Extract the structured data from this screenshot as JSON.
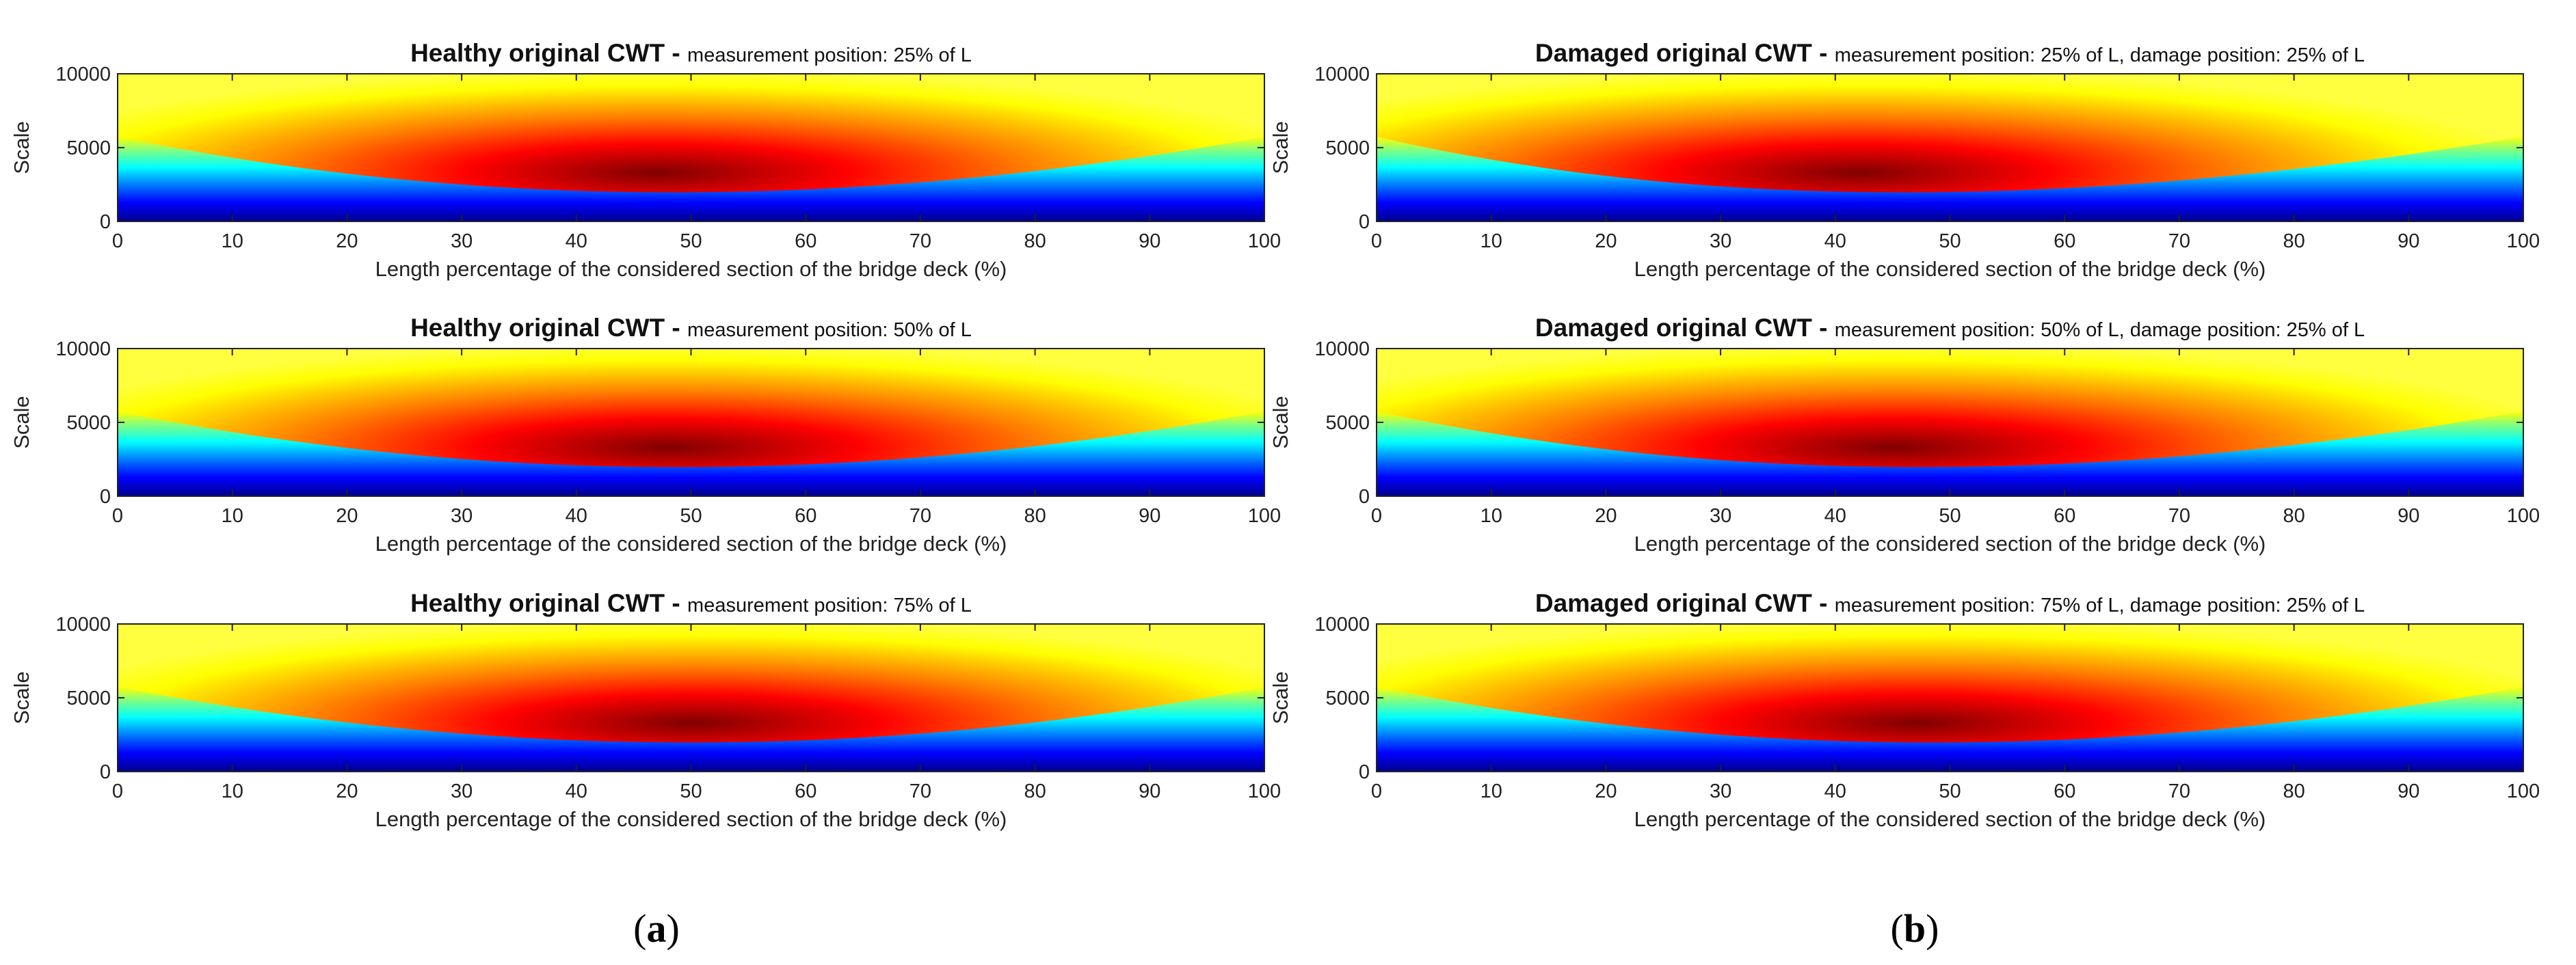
{
  "panel_labels": [
    {
      "open": "(",
      "letter": "a",
      "close": ")"
    },
    {
      "open": "(",
      "letter": "b",
      "close": ")"
    }
  ],
  "colormap": [
    "#00008f",
    "#0000ff",
    "#0080ff",
    "#00ffff",
    "#80ff80",
    "#ffff00",
    "#ff8000",
    "#ff0000",
    "#800000"
  ],
  "chart_data": [
    {
      "type": "heatmap",
      "id": "healthy-25",
      "title_bold": "Healthy original CWT - ",
      "title_rest": "measurement position: 25% of L",
      "xlabel": "Length percentage of the considered section of the bridge deck (%)",
      "ylabel": "Scale",
      "xlim": [
        0,
        100
      ],
      "ylim": [
        0,
        10000
      ],
      "xticks": [
        "0",
        "10",
        "20",
        "30",
        "40",
        "50",
        "60",
        "70",
        "80",
        "90",
        "100"
      ],
      "yticks": [
        "0",
        "5000",
        "10000"
      ],
      "peak": {
        "x": 47,
        "scale": 3300
      }
    },
    {
      "type": "heatmap",
      "id": "healthy-50",
      "title_bold": "Healthy original CWT - ",
      "title_rest": "measurement position: 50% of L",
      "xlabel": "Length percentage of the considered section of the bridge deck (%)",
      "ylabel": "Scale",
      "xlim": [
        0,
        100
      ],
      "ylim": [
        0,
        10000
      ],
      "xticks": [
        "0",
        "10",
        "20",
        "30",
        "40",
        "50",
        "60",
        "70",
        "80",
        "90",
        "100"
      ],
      "yticks": [
        "0",
        "5000",
        "10000"
      ],
      "peak": {
        "x": 48,
        "scale": 3300
      }
    },
    {
      "type": "heatmap",
      "id": "healthy-75",
      "title_bold": "Healthy original CWT - ",
      "title_rest": "measurement position: 75% of L",
      "xlabel": "Length percentage of the considered section of the bridge deck (%)",
      "ylabel": "Scale",
      "xlim": [
        0,
        100
      ],
      "ylim": [
        0,
        10000
      ],
      "xticks": [
        "0",
        "10",
        "20",
        "30",
        "40",
        "50",
        "60",
        "70",
        "80",
        "90",
        "100"
      ],
      "yticks": [
        "0",
        "5000",
        "10000"
      ],
      "peak": {
        "x": 50,
        "scale": 3300
      }
    },
    {
      "type": "heatmap",
      "id": "damaged-25",
      "title_bold": "Damaged original CWT - ",
      "title_rest": "measurement position: 25% of L, damage position: 25% of L",
      "xlabel": "Length percentage of the considered section of the bridge deck (%)",
      "ylabel": "Scale",
      "xlim": [
        0,
        100
      ],
      "ylim": [
        0,
        10000
      ],
      "xticks": [
        "0",
        "10",
        "20",
        "30",
        "40",
        "50",
        "60",
        "70",
        "80",
        "90",
        "100"
      ],
      "yticks": [
        "0",
        "5000",
        "10000"
      ],
      "peak": {
        "x": 42,
        "scale": 3300
      }
    },
    {
      "type": "heatmap",
      "id": "damaged-50",
      "title_bold": "Damaged original CWT - ",
      "title_rest": "measurement position: 50% of L, damage position: 25% of L",
      "xlabel": "Length percentage of the considered section of the bridge deck (%)",
      "ylabel": "Scale",
      "xlim": [
        0,
        100
      ],
      "ylim": [
        0,
        10000
      ],
      "xticks": [
        "0",
        "10",
        "20",
        "30",
        "40",
        "50",
        "60",
        "70",
        "80",
        "90",
        "100"
      ],
      "yticks": [
        "0",
        "5000",
        "10000"
      ],
      "peak": {
        "x": 45,
        "scale": 3300
      }
    },
    {
      "type": "heatmap",
      "id": "damaged-75",
      "title_bold": "Damaged original CWT - ",
      "title_rest": "measurement position: 75% of L, damage position: 25% of L",
      "xlabel": "Length percentage of the considered section of the bridge deck (%)",
      "ylabel": "Scale",
      "xlim": [
        0,
        100
      ],
      "ylim": [
        0,
        10000
      ],
      "xticks": [
        "0",
        "10",
        "20",
        "30",
        "40",
        "50",
        "60",
        "70",
        "80",
        "90",
        "100"
      ],
      "yticks": [
        "0",
        "5000",
        "10000"
      ],
      "peak": {
        "x": 47,
        "scale": 3300
      }
    }
  ]
}
